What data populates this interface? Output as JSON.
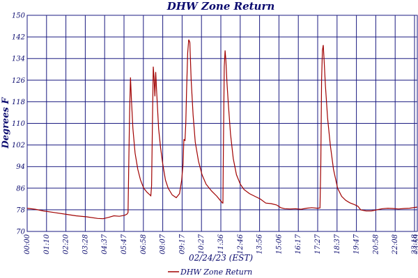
{
  "chart_data": {
    "type": "line",
    "title": "DHW Zone Return",
    "xlabel": "02/24/23 (EST)",
    "ylabel": "Degrees F",
    "ylim": [
      70,
      150
    ],
    "yticks": [
      70,
      78,
      86,
      94,
      102,
      110,
      118,
      126,
      134,
      142,
      150
    ],
    "xticks": [
      "00:00",
      "01:10",
      "02:20",
      "03:28",
      "04:37",
      "05:47",
      "06:58",
      "08:07",
      "09:17",
      "10:27",
      "11:36",
      "12:46",
      "13:56",
      "15:06",
      "16:17",
      "17:27",
      "18:37",
      "19:47",
      "20:58",
      "22:08",
      "23:18",
      "23:59"
    ],
    "xlim_minutes": [
      0,
      1439
    ],
    "grid": true,
    "legend_position": "bottom-center",
    "colors": {
      "series": "#a00000",
      "text": "#0a0a6e",
      "grid": "#1a1a80"
    },
    "series": [
      {
        "name": "DHW Zone Return",
        "x": [
          0,
          30,
          60,
          100,
          140,
          180,
          220,
          260,
          280,
          300,
          320,
          340,
          360,
          368,
          372,
          375,
          378,
          381,
          385,
          390,
          398,
          408,
          418,
          430,
          442,
          450,
          456,
          459,
          462,
          465,
          468,
          471,
          474,
          478,
          485,
          492,
          500,
          510,
          520,
          535,
          550,
          562,
          570,
          575,
          578,
          580,
          582,
          585,
          588,
          592,
          596,
          600,
          605,
          612,
          620,
          632,
          645,
          660,
          680,
          700,
          712,
          717,
          720,
          722,
          724,
          727,
          730,
          733,
          737,
          742,
          750,
          760,
          772,
          786,
          800,
          820,
          840,
          860,
          880,
          900,
          920,
          935,
          950,
          970,
          990,
          1010,
          1030,
          1050,
          1070,
          1080,
          1083,
          1086,
          1089,
          1092,
          1095,
          1100,
          1108,
          1118,
          1130,
          1145,
          1160,
          1175,
          1190,
          1200,
          1210,
          1220,
          1230,
          1250,
          1270,
          1290,
          1310,
          1330,
          1350,
          1370,
          1390,
          1410,
          1439
        ],
        "y": [
          78.6,
          78.2,
          77.6,
          77.0,
          76.4,
          75.8,
          75.4,
          74.8,
          74.7,
          75.2,
          75.8,
          75.6,
          76.0,
          76.4,
          77.0,
          96.0,
          115.0,
          127.0,
          118.0,
          108.0,
          99.0,
          93.0,
          89.0,
          86.0,
          84.5,
          83.8,
          83.2,
          87.0,
          110.0,
          131.0,
          127.0,
          120.0,
          129.0,
          121.0,
          108.0,
          101.0,
          95.0,
          89.0,
          86.0,
          83.5,
          82.5,
          84.0,
          89.0,
          95.0,
          104.0,
          104.0,
          103.5,
          110.0,
          122.0,
          136.0,
          141.0,
          140.0,
          126.0,
          113.0,
          103.0,
          96.0,
          91.0,
          87.5,
          85.0,
          83.0,
          81.5,
          81.0,
          80.5,
          80.5,
          104.0,
          131.0,
          137.0,
          133.0,
          125.0,
          117.0,
          106.0,
          97.0,
          91.0,
          87.5,
          85.5,
          84.0,
          83.0,
          82.0,
          80.5,
          80.3,
          79.8,
          78.8,
          78.4,
          78.3,
          78.4,
          78.2,
          78.6,
          78.8,
          78.6,
          78.7,
          95.0,
          126.0,
          137.0,
          139.0,
          134.0,
          124.0,
          112.0,
          102.0,
          93.0,
          86.0,
          83.0,
          81.5,
          80.6,
          80.2,
          79.8,
          79.3,
          78.0,
          77.6,
          77.6,
          78.0,
          78.4,
          78.6,
          78.5,
          78.3,
          78.5,
          78.6,
          79.0
        ]
      }
    ]
  }
}
